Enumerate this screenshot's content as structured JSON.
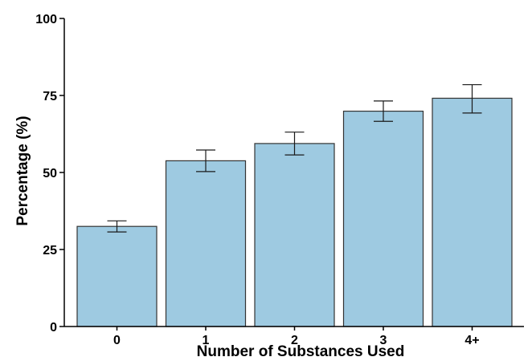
{
  "chart_data": {
    "type": "bar",
    "title": "",
    "xlabel": "Number of Substances Used",
    "ylabel": "Percentage (%)",
    "categories": [
      "0",
      "1",
      "2",
      "3",
      "4+"
    ],
    "values": [
      32.5,
      53.8,
      59.4,
      69.9,
      74.1
    ],
    "error_low": [
      30.7,
      50.3,
      55.7,
      66.6,
      69.3
    ],
    "error_high": [
      34.3,
      57.3,
      63.1,
      73.2,
      78.5
    ],
    "ylim": [
      0,
      100
    ],
    "yticks": [
      0,
      25,
      50,
      75,
      100
    ],
    "grid": false,
    "legend": "none",
    "colors": {
      "bar_fill": "#9ecae1",
      "bar_stroke": "#333333",
      "error_bar": "#1a1a1a",
      "axis": "#000000"
    }
  }
}
